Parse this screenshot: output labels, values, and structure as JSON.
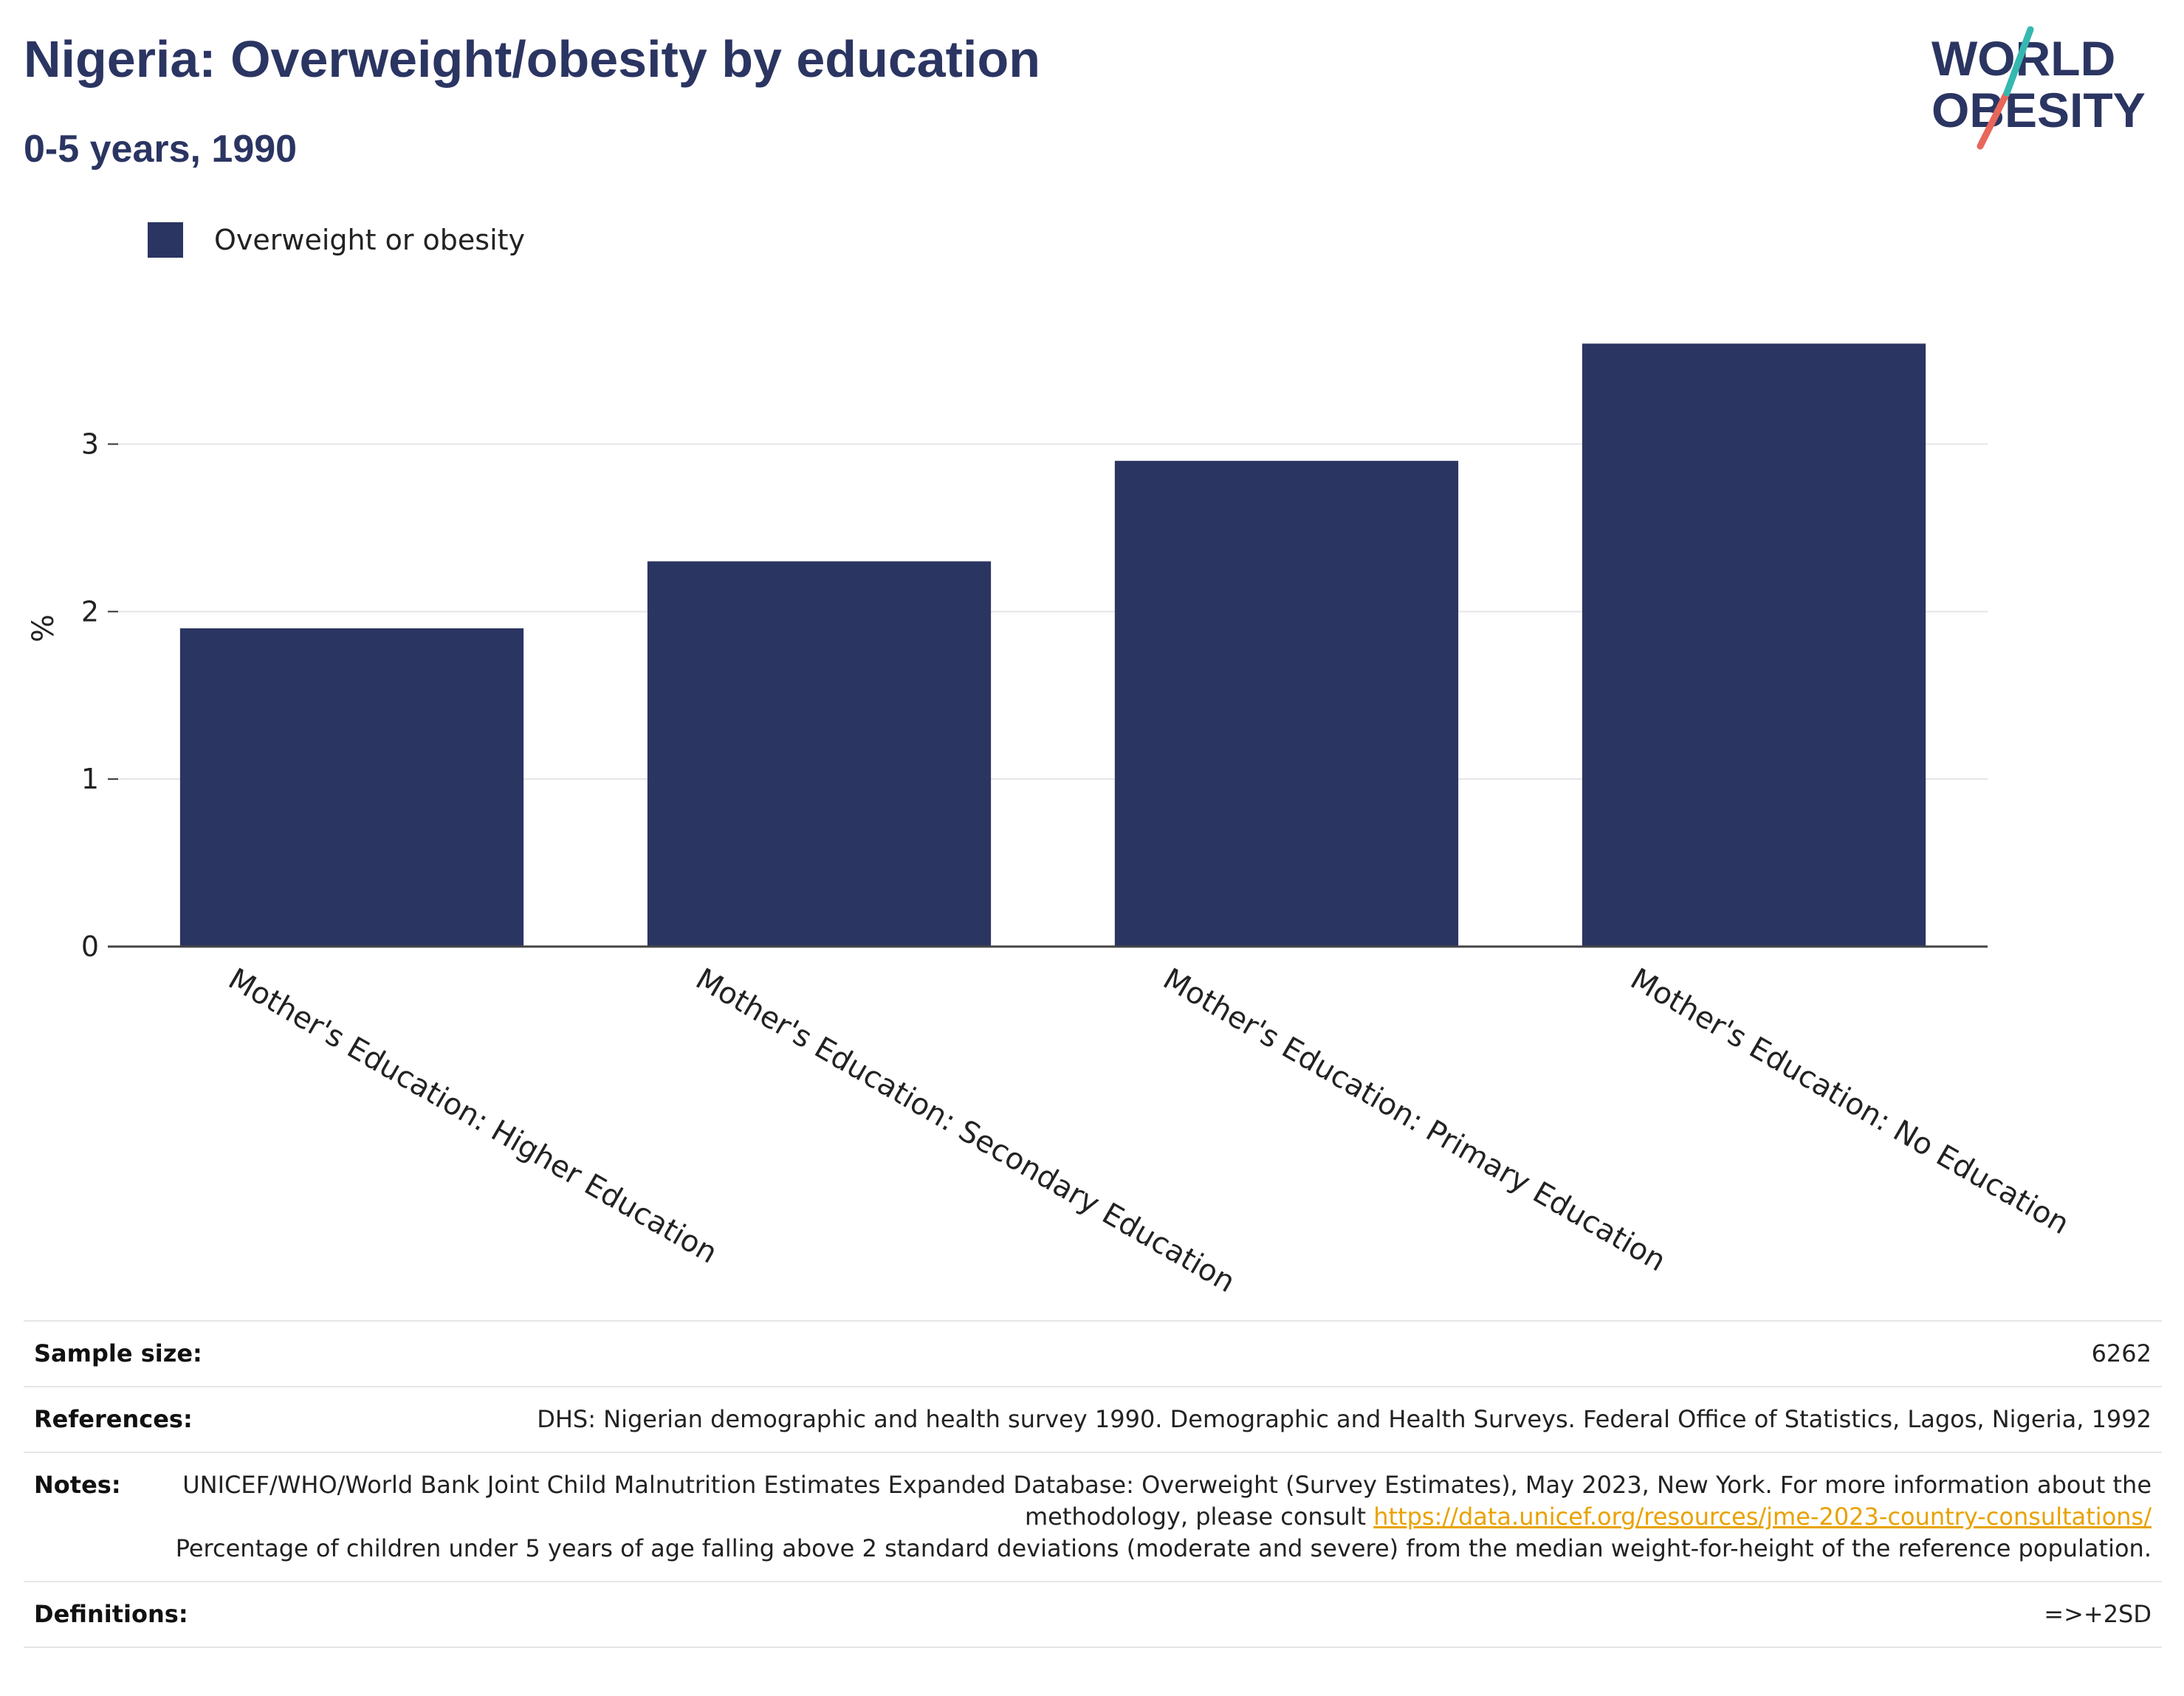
{
  "header": {
    "title": "Nigeria: Overweight/obesity by education",
    "subtitle": "0-5 years, 1990"
  },
  "logo": {
    "line1": "WORLD",
    "line2": "OBESITY"
  },
  "colors": {
    "bar": "#2b3562",
    "title": "#2b3562",
    "link": "#e8a200",
    "logo_teal": "#35b8b0",
    "logo_red": "#e8665a"
  },
  "chart_data": {
    "type": "bar",
    "categories": [
      "Mother's Education: Higher Education",
      "Mother's Education: Secondary Education",
      "Mother's Education: Primary Education",
      "Mother's Education: No Education"
    ],
    "series": [
      {
        "name": "Overweight or obesity",
        "values": [
          1.9,
          2.3,
          2.9,
          3.6
        ]
      }
    ],
    "ylabel": "%",
    "xlabel": "",
    "ylim": [
      0,
      3.8
    ],
    "yticks": [
      0,
      1,
      2,
      3
    ],
    "grid": true,
    "legend": "top-left"
  },
  "info": {
    "sample_size_label": "Sample size:",
    "sample_size_value": "6262",
    "references_label": "References:",
    "references_value": "DHS: Nigerian demographic and health survey 1990. Demographic and Health Surveys. Federal Office of Statistics, Lagos, Nigeria, 1992",
    "notes_label": "Notes:",
    "notes_text1": "UNICEF/WHO/World Bank Joint Child Malnutrition Estimates Expanded Database: Overweight (Survey Estimates), May 2023, New York. For more information about the methodology, please consult",
    "notes_link": "https://data.unicef.org/resources/jme-2023-country-consultations/",
    "notes_text2": "Percentage of children under 5 years of age falling above 2 standard deviations (moderate and severe) from the median weight-for-height of the reference population.",
    "definitions_label": "Definitions:",
    "definitions_value": "=>+2SD"
  }
}
